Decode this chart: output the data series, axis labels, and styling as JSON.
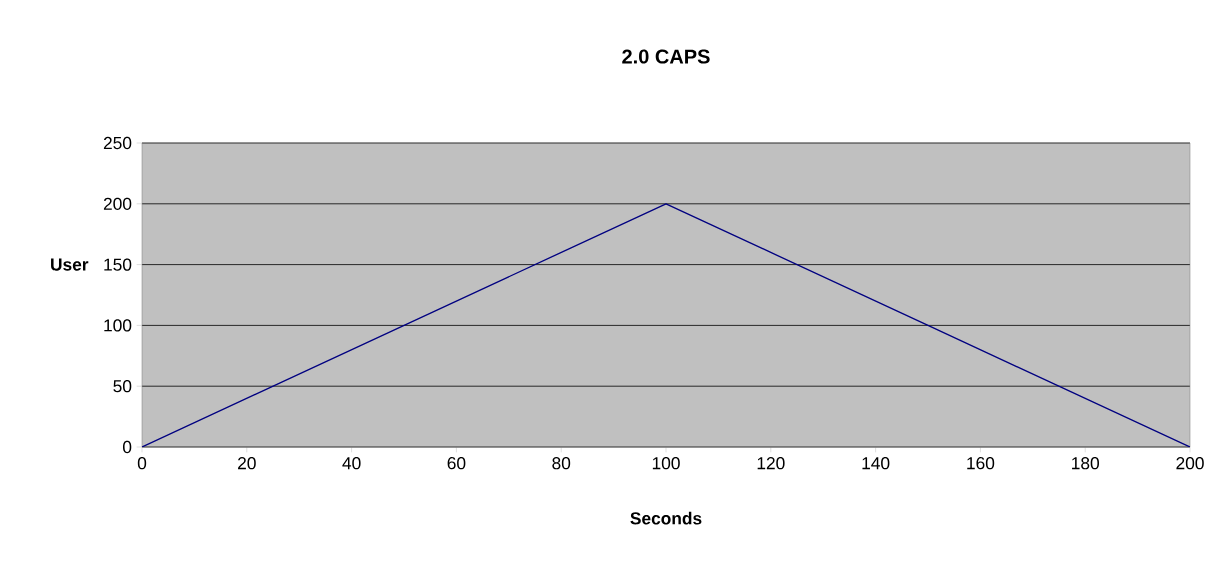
{
  "chart_data": {
    "type": "line",
    "title": "2.0 CAPS",
    "xlabel": "Seconds",
    "ylabel": "User",
    "x": [
      0,
      50,
      100,
      150,
      200
    ],
    "series": [
      {
        "color": "#000080",
        "values": [
          0,
          100,
          200,
          100,
          0
        ]
      }
    ],
    "xlim": [
      0,
      200
    ],
    "xticks": [
      0,
      20,
      40,
      60,
      80,
      100,
      120,
      140,
      160,
      180,
      200
    ],
    "ylim": [
      0,
      250
    ],
    "yticks": [
      0,
      50,
      100,
      150,
      200,
      250
    ],
    "grid": "y",
    "marker": "none",
    "line_style": "solid"
  }
}
